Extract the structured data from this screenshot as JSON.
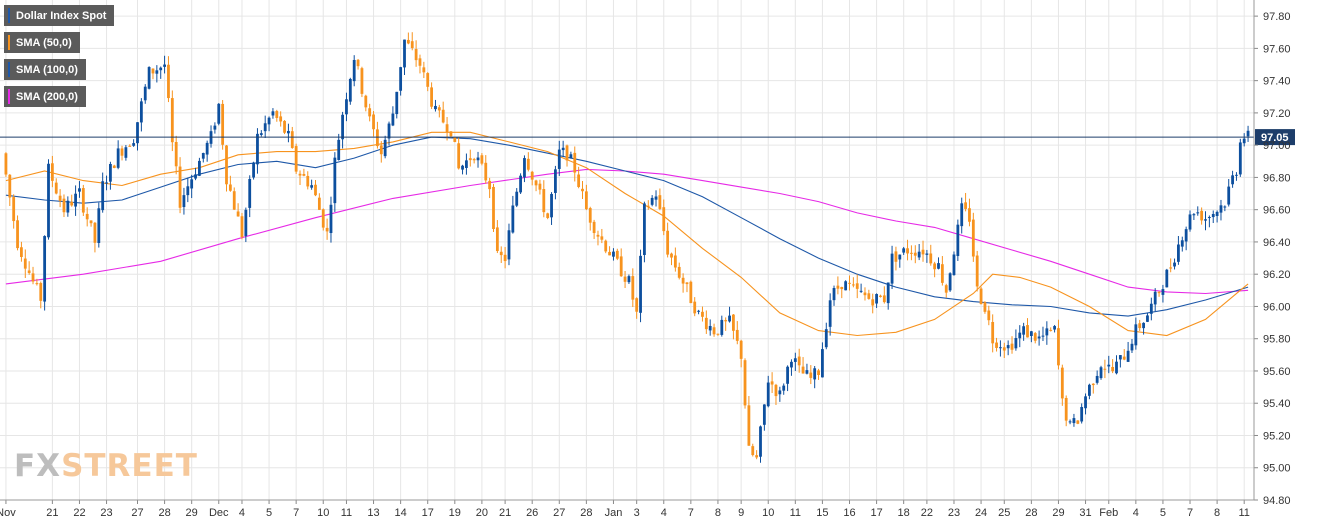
{
  "colors": {
    "bull": "#0d4f9e",
    "bear": "#f7931e",
    "sma50": "#f7931e",
    "sma100": "#1e58a8",
    "sma200": "#e62ae6",
    "price_line": "#1d3d6a",
    "grid": "#e6e6e6",
    "axis_text": "#333333"
  },
  "legend": [
    {
      "label": "Dollar Index Spot",
      "color": "#1e58a8"
    },
    {
      "label": "SMA (50,0)",
      "color": "#f7931e"
    },
    {
      "label": "SMA (100,0)",
      "color": "#1e58a8"
    },
    {
      "label": "SMA (200,0)",
      "color": "#e62ae6"
    }
  ],
  "watermark": {
    "fx": "FX",
    "street": "STREET"
  },
  "chart_data": {
    "type": "candlestick",
    "series_name": "Dollar Index Spot",
    "current_price_label": "97.05",
    "current_price": 97.05,
    "ylim": [
      94.8,
      97.9
    ],
    "y_ticks": [
      "97.80",
      "97.60",
      "97.40",
      "97.20",
      "97.00",
      "96.80",
      "96.60",
      "96.40",
      "96.20",
      "96.00",
      "95.80",
      "95.60",
      "95.40",
      "95.20",
      "95.00",
      "94.80"
    ],
    "x_ticks": [
      "Nov",
      "21",
      "22",
      "23",
      "27",
      "28",
      "29",
      "Dec",
      "4",
      "5",
      "7",
      "10",
      "11",
      "13",
      "14",
      "17",
      "19",
      "20",
      "21",
      "26",
      "27",
      "28",
      "Jan",
      "3",
      "4",
      "7",
      "8",
      "9",
      "10",
      "11",
      "15",
      "16",
      "17",
      "18",
      "22",
      "23",
      "24",
      "25",
      "28",
      "29",
      "31",
      "Feb",
      "4",
      "5",
      "7",
      "8",
      "11"
    ],
    "x_tick_index": [
      0,
      12,
      19,
      26,
      34,
      41,
      48,
      55,
      61,
      68,
      75,
      82,
      88,
      95,
      102,
      109,
      116,
      123,
      129,
      136,
      143,
      150,
      157,
      163,
      170,
      177,
      184,
      190,
      197,
      204,
      211,
      218,
      225,
      232,
      238,
      245,
      252,
      258,
      265,
      272,
      279,
      285,
      292,
      299,
      306,
      313,
      320
    ],
    "n_bars": 322,
    "price_path": [
      [
        0,
        96.95
      ],
      [
        4,
        96.4
      ],
      [
        8,
        96.15
      ],
      [
        10,
        96.05
      ],
      [
        12,
        96.85
      ],
      [
        16,
        96.6
      ],
      [
        20,
        96.7
      ],
      [
        24,
        96.4
      ],
      [
        26,
        96.75
      ],
      [
        30,
        96.95
      ],
      [
        34,
        97.05
      ],
      [
        38,
        97.45
      ],
      [
        42,
        97.5
      ],
      [
        44,
        97.0
      ],
      [
        46,
        96.65
      ],
      [
        50,
        96.85
      ],
      [
        54,
        97.05
      ],
      [
        56,
        97.25
      ],
      [
        58,
        96.8
      ],
      [
        62,
        96.45
      ],
      [
        66,
        97.05
      ],
      [
        70,
        97.2
      ],
      [
        74,
        97.05
      ],
      [
        76,
        96.85
      ],
      [
        80,
        96.75
      ],
      [
        84,
        96.45
      ],
      [
        86,
        96.9
      ],
      [
        88,
        97.2
      ],
      [
        91,
        97.55
      ],
      [
        95,
        97.15
      ],
      [
        98,
        96.95
      ],
      [
        101,
        97.2
      ],
      [
        104,
        97.65
      ],
      [
        108,
        97.5
      ],
      [
        112,
        97.2
      ],
      [
        116,
        97.1
      ],
      [
        118,
        96.85
      ],
      [
        122,
        96.95
      ],
      [
        126,
        96.75
      ],
      [
        128,
        96.3
      ],
      [
        130,
        96.3
      ],
      [
        132,
        96.6
      ],
      [
        135,
        96.95
      ],
      [
        138,
        96.75
      ],
      [
        141,
        96.55
      ],
      [
        144,
        96.95
      ],
      [
        146,
        96.95
      ],
      [
        148,
        96.85
      ],
      [
        151,
        96.6
      ],
      [
        154,
        96.45
      ],
      [
        158,
        96.3
      ],
      [
        162,
        96.15
      ],
      [
        164,
        95.95
      ],
      [
        166,
        96.6
      ],
      [
        169,
        96.7
      ],
      [
        172,
        96.35
      ],
      [
        176,
        96.15
      ],
      [
        180,
        95.95
      ],
      [
        184,
        95.85
      ],
      [
        188,
        95.9
      ],
      [
        191,
        95.7
      ],
      [
        193,
        95.1
      ],
      [
        195,
        95.05
      ],
      [
        198,
        95.55
      ],
      [
        201,
        95.45
      ],
      [
        204,
        95.7
      ],
      [
        206,
        95.6
      ],
      [
        209,
        95.55
      ],
      [
        211,
        95.6
      ],
      [
        214,
        96.05
      ],
      [
        217,
        96.15
      ],
      [
        220,
        96.1
      ],
      [
        224,
        96.05
      ],
      [
        228,
        96.05
      ],
      [
        230,
        96.3
      ],
      [
        234,
        96.35
      ],
      [
        238,
        96.35
      ],
      [
        242,
        96.25
      ],
      [
        244,
        96.1
      ],
      [
        246,
        96.35
      ],
      [
        248,
        96.6
      ],
      [
        250,
        96.55
      ],
      [
        252,
        96.1
      ],
      [
        254,
        96.0
      ],
      [
        256,
        95.8
      ],
      [
        260,
        95.75
      ],
      [
        264,
        95.85
      ],
      [
        268,
        95.8
      ],
      [
        272,
        95.85
      ],
      [
        274,
        95.4
      ],
      [
        276,
        95.25
      ],
      [
        278,
        95.3
      ],
      [
        280,
        95.45
      ],
      [
        284,
        95.65
      ],
      [
        287,
        95.6
      ],
      [
        290,
        95.7
      ],
      [
        293,
        95.85
      ],
      [
        296,
        95.95
      ],
      [
        299,
        96.1
      ],
      [
        302,
        96.25
      ],
      [
        305,
        96.45
      ],
      [
        308,
        96.6
      ],
      [
        311,
        96.55
      ],
      [
        314,
        96.6
      ],
      [
        316,
        96.65
      ],
      [
        318,
        96.8
      ],
      [
        319,
        96.85
      ],
      [
        320,
        97.05
      ],
      [
        321,
        97.05
      ]
    ],
    "sma50": [
      [
        0,
        96.78
      ],
      [
        10,
        96.84
      ],
      [
        20,
        96.78
      ],
      [
        30,
        96.75
      ],
      [
        40,
        96.82
      ],
      [
        50,
        96.86
      ],
      [
        60,
        96.94
      ],
      [
        70,
        96.96
      ],
      [
        80,
        96.96
      ],
      [
        90,
        96.98
      ],
      [
        100,
        97.02
      ],
      [
        110,
        97.08
      ],
      [
        120,
        97.08
      ],
      [
        130,
        97.02
      ],
      [
        140,
        96.96
      ],
      [
        150,
        96.86
      ],
      [
        160,
        96.7
      ],
      [
        170,
        96.56
      ],
      [
        180,
        96.36
      ],
      [
        190,
        96.18
      ],
      [
        200,
        95.96
      ],
      [
        210,
        95.85
      ],
      [
        220,
        95.82
      ],
      [
        230,
        95.84
      ],
      [
        240,
        95.92
      ],
      [
        250,
        96.08
      ],
      [
        255,
        96.2
      ],
      [
        262,
        96.18
      ],
      [
        270,
        96.12
      ],
      [
        280,
        96.0
      ],
      [
        290,
        95.85
      ],
      [
        300,
        95.82
      ],
      [
        310,
        95.92
      ],
      [
        320,
        96.12
      ],
      [
        321,
        96.14
      ]
    ],
    "sma100": [
      [
        0,
        96.69
      ],
      [
        10,
        96.66
      ],
      [
        20,
        96.64
      ],
      [
        30,
        96.66
      ],
      [
        40,
        96.74
      ],
      [
        50,
        96.82
      ],
      [
        60,
        96.88
      ],
      [
        70,
        96.9
      ],
      [
        80,
        96.86
      ],
      [
        90,
        96.92
      ],
      [
        100,
        97.0
      ],
      [
        110,
        97.05
      ],
      [
        120,
        97.04
      ],
      [
        130,
        97.0
      ],
      [
        140,
        96.95
      ],
      [
        150,
        96.9
      ],
      [
        160,
        96.84
      ],
      [
        170,
        96.78
      ],
      [
        180,
        96.68
      ],
      [
        190,
        96.55
      ],
      [
        200,
        96.42
      ],
      [
        210,
        96.3
      ],
      [
        220,
        96.2
      ],
      [
        230,
        96.12
      ],
      [
        240,
        96.06
      ],
      [
        250,
        96.03
      ],
      [
        260,
        96.01
      ],
      [
        270,
        96.0
      ],
      [
        280,
        95.96
      ],
      [
        290,
        95.94
      ],
      [
        300,
        95.98
      ],
      [
        310,
        96.04
      ],
      [
        321,
        96.12
      ]
    ],
    "sma200": [
      [
        0,
        96.14
      ],
      [
        20,
        96.2
      ],
      [
        40,
        96.28
      ],
      [
        60,
        96.42
      ],
      [
        80,
        96.55
      ],
      [
        100,
        96.67
      ],
      [
        120,
        96.75
      ],
      [
        140,
        96.82
      ],
      [
        150,
        96.85
      ],
      [
        160,
        96.84
      ],
      [
        170,
        96.82
      ],
      [
        180,
        96.78
      ],
      [
        190,
        96.74
      ],
      [
        200,
        96.7
      ],
      [
        210,
        96.65
      ],
      [
        220,
        96.58
      ],
      [
        230,
        96.53
      ],
      [
        240,
        96.49
      ],
      [
        250,
        96.42
      ],
      [
        260,
        96.35
      ],
      [
        270,
        96.28
      ],
      [
        280,
        96.2
      ],
      [
        290,
        96.12
      ],
      [
        300,
        96.09
      ],
      [
        310,
        96.08
      ],
      [
        321,
        96.1
      ]
    ]
  }
}
